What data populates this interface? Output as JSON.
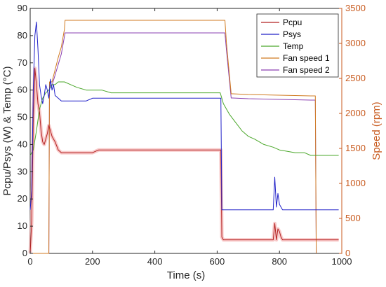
{
  "chart_data": {
    "type": "line",
    "title": "",
    "xlabel": "Time (s)",
    "ylabel_left": "Pcpu/Psys (W) & Temp (°C)",
    "ylabel_right": "Speed (rpm)",
    "xlim": [
      0,
      1000
    ],
    "ylim_left": [
      0,
      90
    ],
    "ylim_right": [
      0,
      3500
    ],
    "xticks": [
      "0",
      "200",
      "400",
      "600",
      "800",
      "1000"
    ],
    "yticks_left": [
      "0",
      "10",
      "20",
      "30",
      "40",
      "50",
      "60",
      "70",
      "80",
      "90"
    ],
    "yticks_right": [
      "0",
      "500",
      "1000",
      "1500",
      "2000",
      "2500",
      "3000",
      "3500"
    ],
    "grid": false,
    "legend_position": "top-right",
    "colors": {
      "pcpu": "#b22020",
      "pcpu_band": "#f4a7a7",
      "psys": "#2020c8",
      "temp": "#4aa72a",
      "fan1": "#d07a20",
      "fan2": "#8a3fb0",
      "right_axis": "#c85a1e"
    },
    "series": [
      {
        "name": "Pcpu",
        "axis": "left",
        "x": [
          0,
          5,
          10,
          15,
          20,
          25,
          30,
          35,
          40,
          45,
          50,
          55,
          60,
          65,
          70,
          75,
          80,
          90,
          100,
          120,
          150,
          180,
          200,
          220,
          250,
          300,
          350,
          400,
          450,
          500,
          550,
          600,
          612,
          615,
          620,
          650,
          700,
          750,
          780,
          785,
          790,
          795,
          800,
          805,
          810,
          850,
          900,
          950,
          990
        ],
        "y": [
          0,
          12,
          48,
          68,
          62,
          55,
          52,
          45,
          41,
          40,
          42,
          44,
          47,
          45,
          43,
          42,
          41,
          38,
          37,
          37,
          37,
          37,
          37,
          38,
          38,
          38,
          38,
          38,
          38,
          38,
          38,
          38,
          38,
          6,
          5,
          5,
          5,
          5,
          5,
          11,
          5,
          9,
          8,
          6,
          5,
          5,
          5,
          5,
          5
        ]
      },
      {
        "name": "Psys",
        "axis": "left",
        "x": [
          0,
          5,
          10,
          15,
          20,
          25,
          30,
          35,
          40,
          45,
          50,
          55,
          60,
          65,
          70,
          75,
          80,
          90,
          100,
          110,
          150,
          180,
          200,
          220,
          250,
          300,
          350,
          400,
          450,
          500,
          550,
          600,
          612,
          615,
          620,
          650,
          700,
          750,
          780,
          785,
          790,
          795,
          800,
          805,
          810,
          850,
          900,
          950,
          990
        ],
        "y": [
          16,
          23,
          60,
          80,
          85,
          75,
          62,
          58,
          55,
          58,
          62,
          60,
          57,
          64,
          60,
          62,
          58,
          57,
          56,
          56,
          56,
          56,
          57,
          57,
          57,
          57,
          57,
          57,
          57,
          57,
          57,
          57,
          57,
          16,
          16,
          16,
          16,
          16,
          16,
          28,
          17,
          22,
          18,
          17,
          16,
          16,
          16,
          16,
          16
        ]
      },
      {
        "name": "Temp",
        "axis": "left",
        "x": [
          0,
          10,
          20,
          30,
          40,
          50,
          60,
          70,
          80,
          90,
          100,
          110,
          130,
          150,
          180,
          200,
          230,
          260,
          300,
          400,
          500,
          600,
          610,
          620,
          630,
          640,
          660,
          680,
          700,
          720,
          750,
          780,
          800,
          850,
          880,
          900,
          950,
          990
        ],
        "y": [
          36,
          38,
          45,
          53,
          57,
          59,
          60,
          62,
          62,
          63,
          63,
          63,
          62,
          61,
          60,
          60,
          60,
          59,
          59,
          59,
          59,
          59,
          59,
          55,
          53,
          51,
          48,
          45,
          43,
          42,
          40,
          39,
          38,
          37,
          37,
          36,
          36,
          36
        ]
      },
      {
        "name": "Fan speed 1",
        "axis": "right",
        "x": [
          0,
          60,
          62,
          70,
          90,
          100,
          110,
          112,
          200,
          300,
          400,
          500,
          600,
          610,
          625,
          630,
          645,
          650,
          700,
          800,
          900,
          915,
          918
        ],
        "y": [
          0,
          0,
          2450,
          2450,
          2800,
          2950,
          3200,
          3330,
          3330,
          3330,
          3330,
          3330,
          3330,
          3330,
          3330,
          3000,
          2280,
          2280,
          2270,
          2260,
          2250,
          2250,
          0
        ]
      },
      {
        "name": "Fan speed 2",
        "axis": "right",
        "x": [
          0,
          60,
          62,
          70,
          90,
          100,
          110,
          112,
          200,
          300,
          400,
          500,
          600,
          610,
          625,
          630,
          645,
          650,
          700,
          800,
          900,
          915,
          918
        ],
        "y": [
          0,
          0,
          2400,
          2400,
          2700,
          2850,
          3100,
          3150,
          3150,
          3150,
          3150,
          3150,
          3150,
          3150,
          3150,
          2900,
          2220,
          2220,
          2210,
          2200,
          2190,
          2190,
          0
        ]
      }
    ]
  }
}
